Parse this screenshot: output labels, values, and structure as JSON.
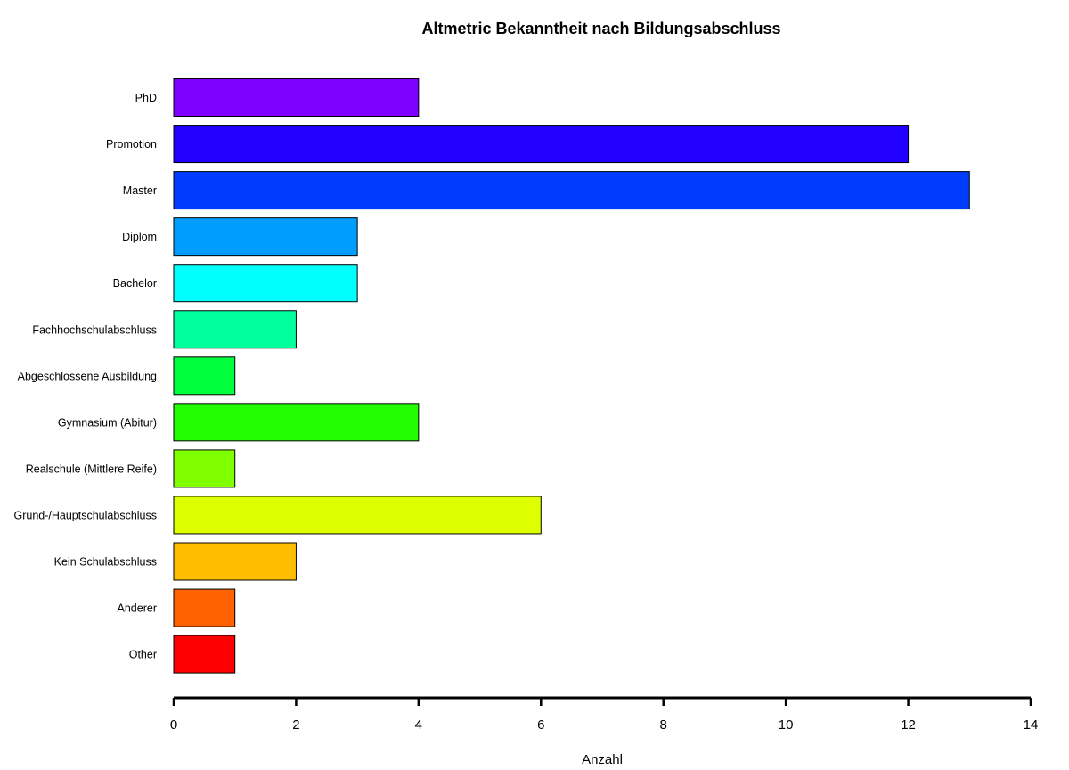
{
  "chart_data": {
    "type": "bar",
    "orientation": "horizontal",
    "title": "Altmetric Bekanntheit nach Bildungsabschluss",
    "xlabel": "Anzahl",
    "ylabel": "",
    "xlim": [
      0,
      14
    ],
    "x_ticks": [
      0,
      2,
      4,
      6,
      8,
      10,
      12,
      14
    ],
    "grid": false,
    "legend": "none",
    "categories": [
      "PhD",
      "Promotion",
      "Master",
      "Diplom",
      "Bachelor",
      "Fachhochschulabschluss",
      "Abgeschlossene Ausbildung",
      "Gymnasium (Abitur)",
      "Realschule (Mittlere Reife)",
      "Grund-/Hauptschulabschluss",
      "Kein Schulabschluss",
      "Anderer",
      "Other"
    ],
    "values": [
      4,
      12,
      13,
      3,
      3,
      2,
      1,
      4,
      1,
      6,
      2,
      1,
      1
    ],
    "colors": [
      "#8000FF",
      "#2200FF",
      "#003CFF",
      "#009DFF",
      "#00FFFF",
      "#00FF9D",
      "#00FF3C",
      "#22FF00",
      "#80FF00",
      "#DDFF00",
      "#FFBF00",
      "#FF6200",
      "#FF0000"
    ]
  }
}
